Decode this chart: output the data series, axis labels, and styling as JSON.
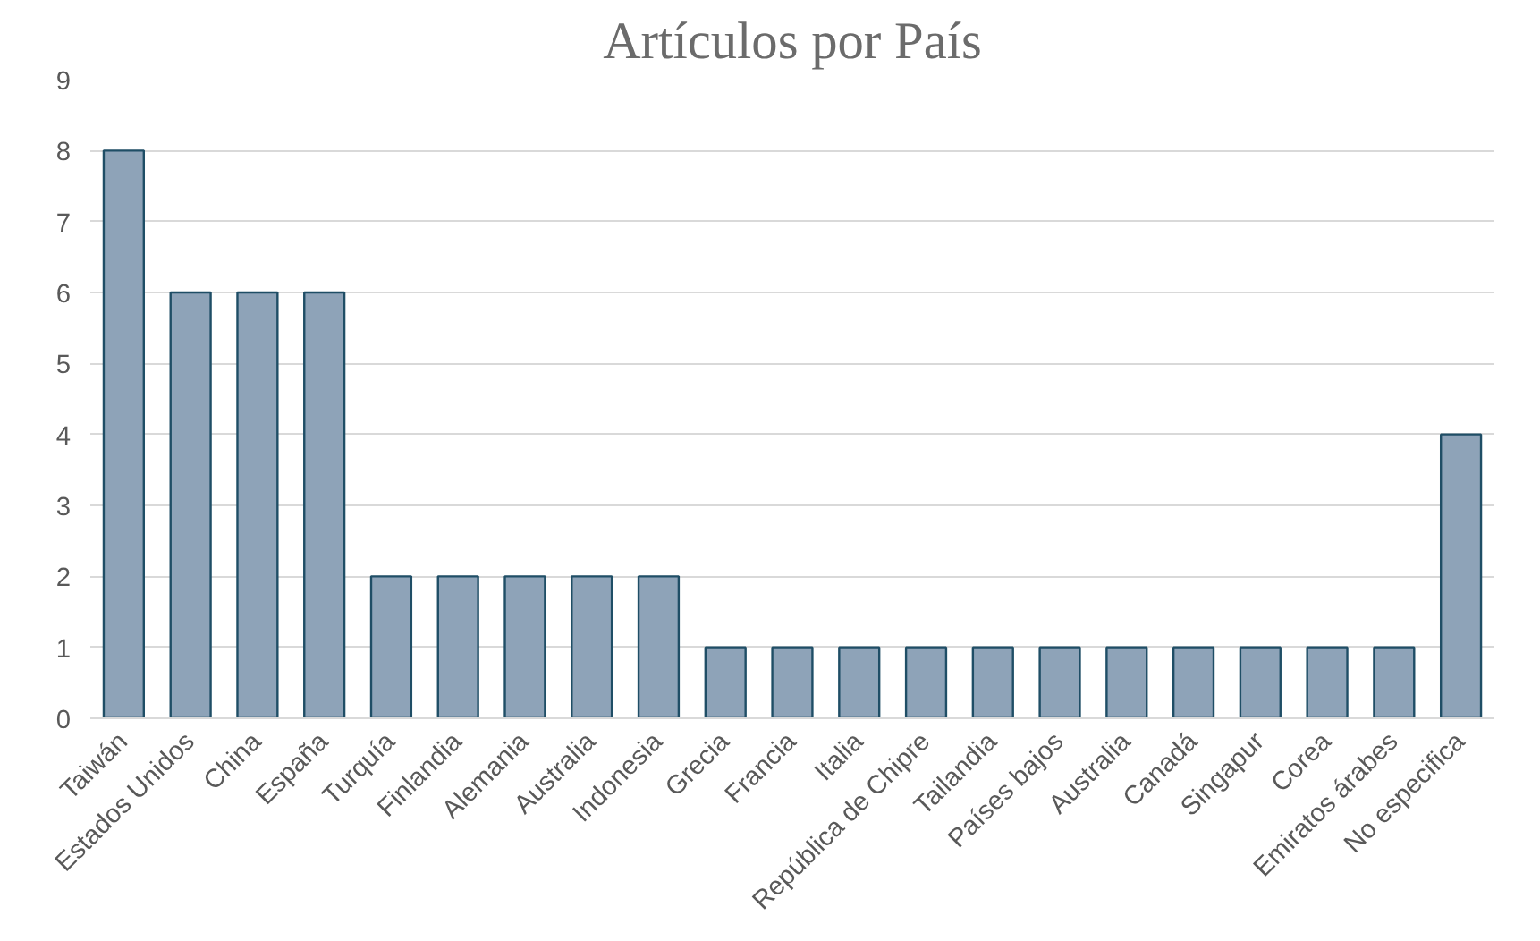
{
  "chart_data": {
    "type": "bar",
    "title": "Artículos por País",
    "categories": [
      "Taiwán",
      "Estados Unidos",
      "China",
      "España",
      "Turquía",
      "Finlandia",
      "Alemania",
      "Australia",
      "Indonesia",
      "Grecia",
      "Francia",
      "Italia",
      "República de Chipre",
      "Tailandia",
      "Países bajos",
      "Australia",
      "Canadá",
      "Singapur",
      "Corea",
      "Emiratos árabes",
      "No especifica"
    ],
    "values": [
      8,
      6,
      6,
      6,
      2,
      2,
      2,
      2,
      2,
      1,
      1,
      1,
      1,
      1,
      1,
      1,
      1,
      1,
      1,
      1,
      4
    ],
    "color": "#8ea3b8",
    "ylim": [
      0,
      9
    ],
    "yticks": [
      0,
      1,
      2,
      3,
      4,
      5,
      6,
      7,
      8,
      9
    ],
    "grid": "y"
  }
}
